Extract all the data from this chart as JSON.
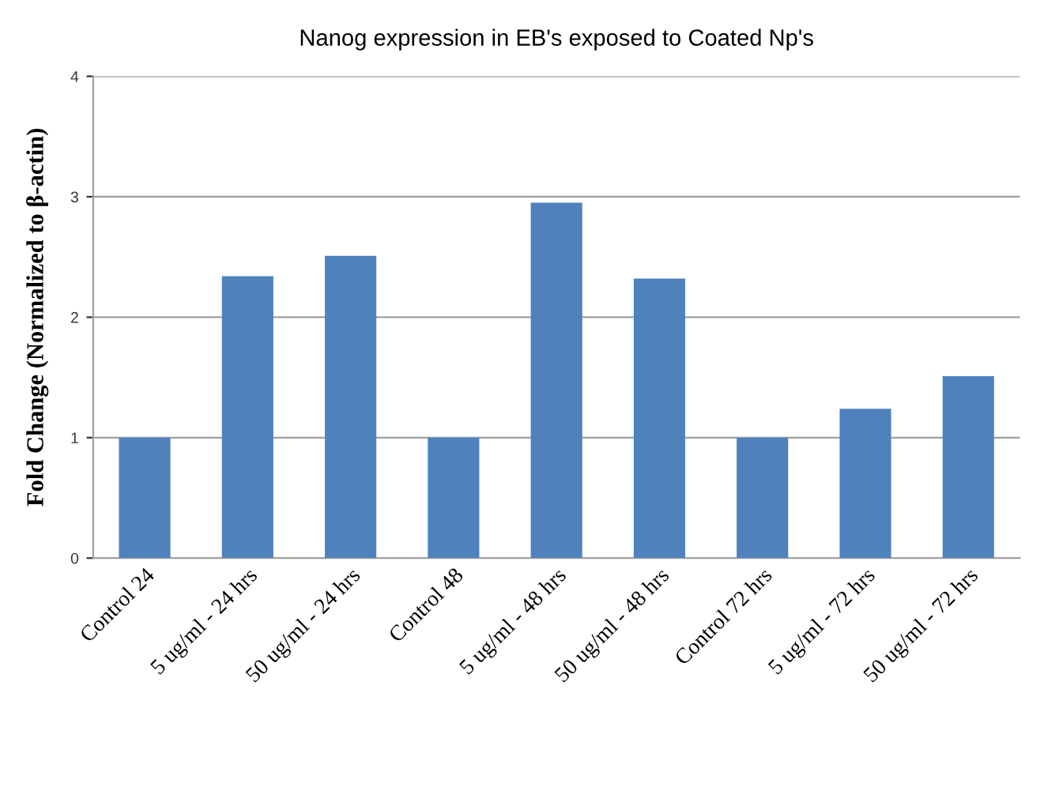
{
  "chart_data": {
    "type": "bar",
    "title": "Nanog expression in EB's exposed to Coated Np's",
    "ylabel": "Fold Change (Normalized to β-actin)",
    "categories": [
      "Control 24",
      "5 ug/ml - 24 hrs",
      "50 ug/ml - 24 hrs",
      "Control 48",
      "5 ug/ml - 48 hrs",
      "50 ug/ml - 48 hrs",
      "Control 72 hrs",
      "5 ug/ml - 72 hrs",
      "50 ug/ml - 72 hrs"
    ],
    "values": [
      1.0,
      2.34,
      2.51,
      1.0,
      2.95,
      2.32,
      1.0,
      1.24,
      1.51
    ],
    "color": "#4f81bd",
    "ylim": [
      0,
      4
    ],
    "yticks": [
      0,
      1,
      2,
      3,
      4
    ],
    "grid": "y"
  }
}
